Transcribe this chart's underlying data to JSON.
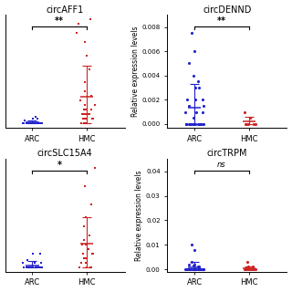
{
  "panels": [
    {
      "title": "circAFF1",
      "sig": "**",
      "has_ylabel": false,
      "ytick_labels": [],
      "ylim": [
        -0.001,
        0.024
      ],
      "arc_data": [
        0.0,
        0.0,
        0.0,
        0.0,
        0.0,
        0.0,
        0.0,
        0.0,
        0.0,
        0.0,
        0.0,
        0.0,
        0.0,
        0.0,
        0.0,
        0.0,
        0.0,
        0.0,
        0.0,
        0.0,
        0.0,
        0.0,
        0.0,
        0.0,
        0.0,
        0.0005,
        0.001,
        0.001,
        0.0015
      ],
      "hmc_data": [
        0.0,
        0.0,
        0.0,
        0.0,
        0.001,
        0.001,
        0.001,
        0.001,
        0.001,
        0.002,
        0.002,
        0.002,
        0.002,
        0.002,
        0.003,
        0.003,
        0.003,
        0.004,
        0.004,
        0.005,
        0.006,
        0.007,
        0.009,
        0.012,
        0.015,
        0.018,
        0.02,
        0.022,
        0.023
      ],
      "marker": "s"
    },
    {
      "title": "circDENND",
      "sig": "**",
      "has_ylabel": true,
      "ytick_vals": [
        0.0,
        0.002,
        0.004,
        0.006,
        0.008
      ],
      "ytick_labels": [
        "0.000",
        "0.002",
        "0.004",
        "0.006",
        "0.008"
      ],
      "ylim": [
        -0.0003,
        0.009
      ],
      "arc_data": [
        0.0,
        0.0,
        0.0,
        0.0,
        0.0,
        0.0,
        0.0,
        0.0,
        0.0,
        0.0,
        0.0,
        0.0,
        0.0,
        0.0,
        0.0,
        0.0,
        0.0,
        0.0005,
        0.001,
        0.001,
        0.001,
        0.0015,
        0.0015,
        0.002,
        0.002,
        0.002,
        0.003,
        0.003,
        0.0035,
        0.004,
        0.005,
        0.006,
        0.0075
      ],
      "hmc_data": [
        0.0,
        0.0,
        0.0,
        0.0,
        0.0,
        0.0005,
        0.001
      ],
      "marker": "o"
    },
    {
      "title": "circSLC15A4",
      "sig": "*",
      "has_ylabel": false,
      "ytick_labels": [],
      "ylim": [
        -0.001,
        0.024
      ],
      "arc_data": [
        0.0,
        0.0,
        0.0,
        0.0,
        0.0,
        0.0,
        0.0,
        0.0,
        0.0,
        0.0,
        0.0,
        0.0,
        0.0,
        0.0,
        0.0,
        0.0,
        0.0,
        0.0,
        0.0,
        0.001,
        0.001,
        0.001,
        0.0015,
        0.003,
        0.003
      ],
      "hmc_data": [
        0.0,
        0.0,
        0.0,
        0.0,
        0.001,
        0.001,
        0.001,
        0.002,
        0.002,
        0.002,
        0.003,
        0.003,
        0.003,
        0.004,
        0.005,
        0.005,
        0.006,
        0.007,
        0.009,
        0.011,
        0.014,
        0.018,
        0.022
      ],
      "marker": "s"
    },
    {
      "title": "circTRPM",
      "sig": "ns",
      "has_ylabel": true,
      "ytick_vals": [
        0.0,
        0.01,
        0.02,
        0.03,
        0.04
      ],
      "ytick_labels": [
        "0.00",
        "0.01",
        "0.02",
        "0.03",
        "0.04"
      ],
      "ylim": [
        -0.001,
        0.045
      ],
      "arc_data": [
        0.0,
        0.0,
        0.0,
        0.0,
        0.0,
        0.0,
        0.0,
        0.0,
        0.0,
        0.0,
        0.0,
        0.0,
        0.0,
        0.0,
        0.0,
        0.0,
        0.0,
        0.0,
        0.0,
        0.0,
        0.0,
        0.0,
        0.0,
        0.0,
        0.0,
        0.0,
        0.0,
        0.001,
        0.001,
        0.0015,
        0.002,
        0.002,
        0.003,
        0.008,
        0.01
      ],
      "hmc_data": [
        0.0,
        0.0,
        0.0,
        0.0,
        0.0,
        0.0,
        0.0,
        0.0,
        0.0005,
        0.001,
        0.001,
        0.003
      ],
      "marker": "o"
    }
  ],
  "arc_color": "#2222cc",
  "hmc_color": "#cc2222",
  "ylabel": "Relative expression levels"
}
